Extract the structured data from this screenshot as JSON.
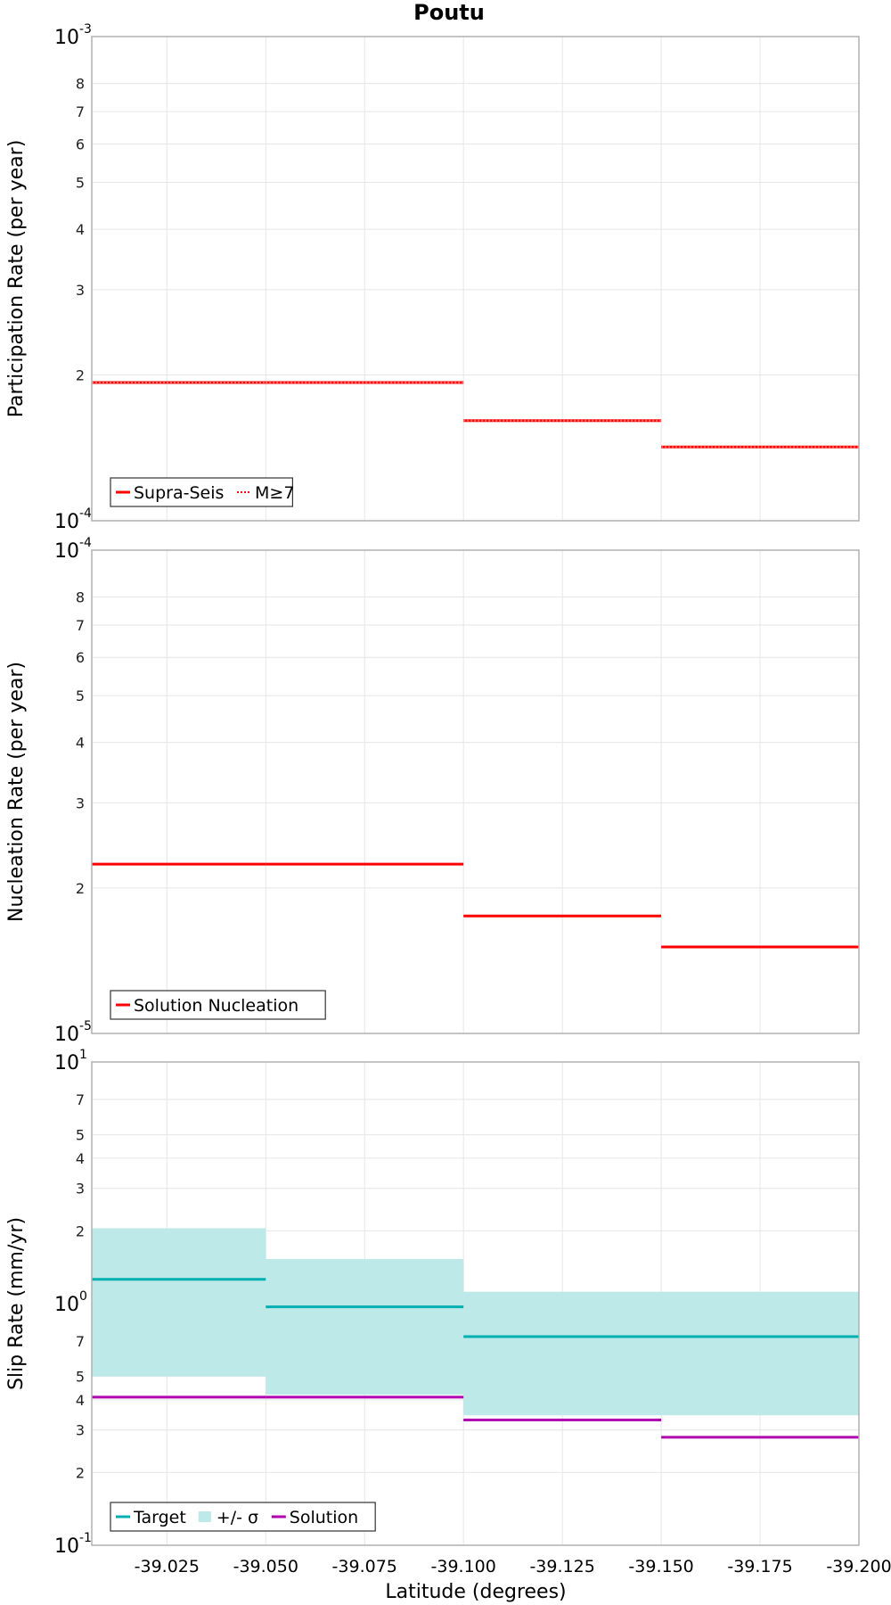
{
  "title": "Poutu",
  "xlabel": "Latitude (degrees)",
  "colors": {
    "red": "#ff0000",
    "teal": "#00b0b0",
    "band": "#bde9e9",
    "purple": "#b000b0",
    "grid": "#e6e6e6",
    "frame": "#b0b0b0"
  },
  "chart_data": [
    {
      "type": "line",
      "ylabel": "Participation Rate (per year)",
      "yscale": "log",
      "ylim": [
        0.0001,
        0.001
      ],
      "xlim": [
        -39.006,
        -39.2
      ],
      "major_ticks": [
        {
          "base": "10",
          "exp": "-4"
        },
        {
          "base": "10",
          "exp": "-3"
        }
      ],
      "minor_ticks": [
        "2",
        "3",
        "4",
        "5",
        "6",
        "7",
        "8"
      ],
      "x_ticks": [
        "-39.025",
        "-39.050",
        "-39.075",
        "-39.100",
        "-39.125",
        "-39.150",
        "-39.175",
        "-39.200"
      ],
      "legend_position": "bottom-left",
      "series": [
        {
          "name": "Supra-Seis",
          "style": "solid",
          "segments": [
            [
              -39.006,
              -39.05,
              0.000193
            ],
            [
              -39.05,
              -39.1,
              0.000193
            ],
            [
              -39.1,
              -39.15,
              0.000161
            ],
            [
              -39.15,
              -39.2,
              0.000142
            ]
          ]
        },
        {
          "name": "M≥7",
          "style": "dotted",
          "segments": [
            [
              -39.006,
              -39.05,
              0.000193
            ],
            [
              -39.05,
              -39.1,
              0.000193
            ],
            [
              -39.1,
              -39.15,
              0.000161
            ],
            [
              -39.15,
              -39.2,
              0.000142
            ]
          ]
        }
      ]
    },
    {
      "type": "line",
      "ylabel": "Nucleation Rate (per year)",
      "yscale": "log",
      "ylim": [
        1e-05,
        0.0001
      ],
      "xlim": [
        -39.006,
        -39.2
      ],
      "major_ticks": [
        {
          "base": "10",
          "exp": "-5"
        },
        {
          "base": "10",
          "exp": "-4"
        }
      ],
      "minor_ticks": [
        "2",
        "3",
        "4",
        "5",
        "6",
        "7",
        "8"
      ],
      "x_ticks": [
        "-39.025",
        "-39.050",
        "-39.075",
        "-39.100",
        "-39.125",
        "-39.150",
        "-39.175",
        "-39.200"
      ],
      "legend_position": "bottom-left",
      "series": [
        {
          "name": "Solution Nucleation",
          "style": "solid",
          "segments": [
            [
              -39.006,
              -39.05,
              2.24e-05
            ],
            [
              -39.05,
              -39.1,
              2.24e-05
            ],
            [
              -39.1,
              -39.15,
              1.75e-05
            ],
            [
              -39.15,
              -39.2,
              1.51e-05
            ]
          ]
        }
      ]
    },
    {
      "type": "line",
      "ylabel": "Slip Rate (mm/yr)",
      "yscale": "log",
      "ylim": [
        0.1,
        10
      ],
      "xlim": [
        -39.006,
        -39.2
      ],
      "major_ticks": [
        {
          "base": "10",
          "exp": "-1"
        },
        {
          "base": "10",
          "exp": "0"
        },
        {
          "base": "10",
          "exp": "1"
        }
      ],
      "minor_ticks_values": [
        0.2,
        0.3,
        0.4,
        0.5,
        0.7,
        2,
        3,
        4,
        5,
        7
      ],
      "minor_ticks": [
        "2",
        "3",
        "4",
        "5",
        "7",
        "2",
        "3",
        "4",
        "5",
        "7"
      ],
      "x_ticks": [
        "-39.025",
        "-39.050",
        "-39.075",
        "-39.100",
        "-39.125",
        "-39.150",
        "-39.175",
        "-39.200"
      ],
      "legend_position": "bottom-left",
      "band": {
        "name": "+/- σ",
        "segments": [
          [
            -39.006,
            -39.05,
            0.5,
            2.05
          ],
          [
            -39.05,
            -39.1,
            0.42,
            1.53
          ],
          [
            -39.1,
            -39.2,
            0.345,
            1.12
          ]
        ]
      },
      "series": [
        {
          "name": "Target",
          "style": "solid",
          "segments": [
            [
              -39.006,
              -39.05,
              1.26
            ],
            [
              -39.05,
              -39.1,
              0.97
            ],
            [
              -39.1,
              -39.2,
              0.73
            ]
          ]
        },
        {
          "name": "Solution",
          "style": "solid",
          "segments": [
            [
              -39.006,
              -39.05,
              0.41
            ],
            [
              -39.05,
              -39.1,
              0.41
            ],
            [
              -39.1,
              -39.15,
              0.33
            ],
            [
              -39.15,
              -39.2,
              0.28
            ]
          ]
        }
      ]
    }
  ]
}
